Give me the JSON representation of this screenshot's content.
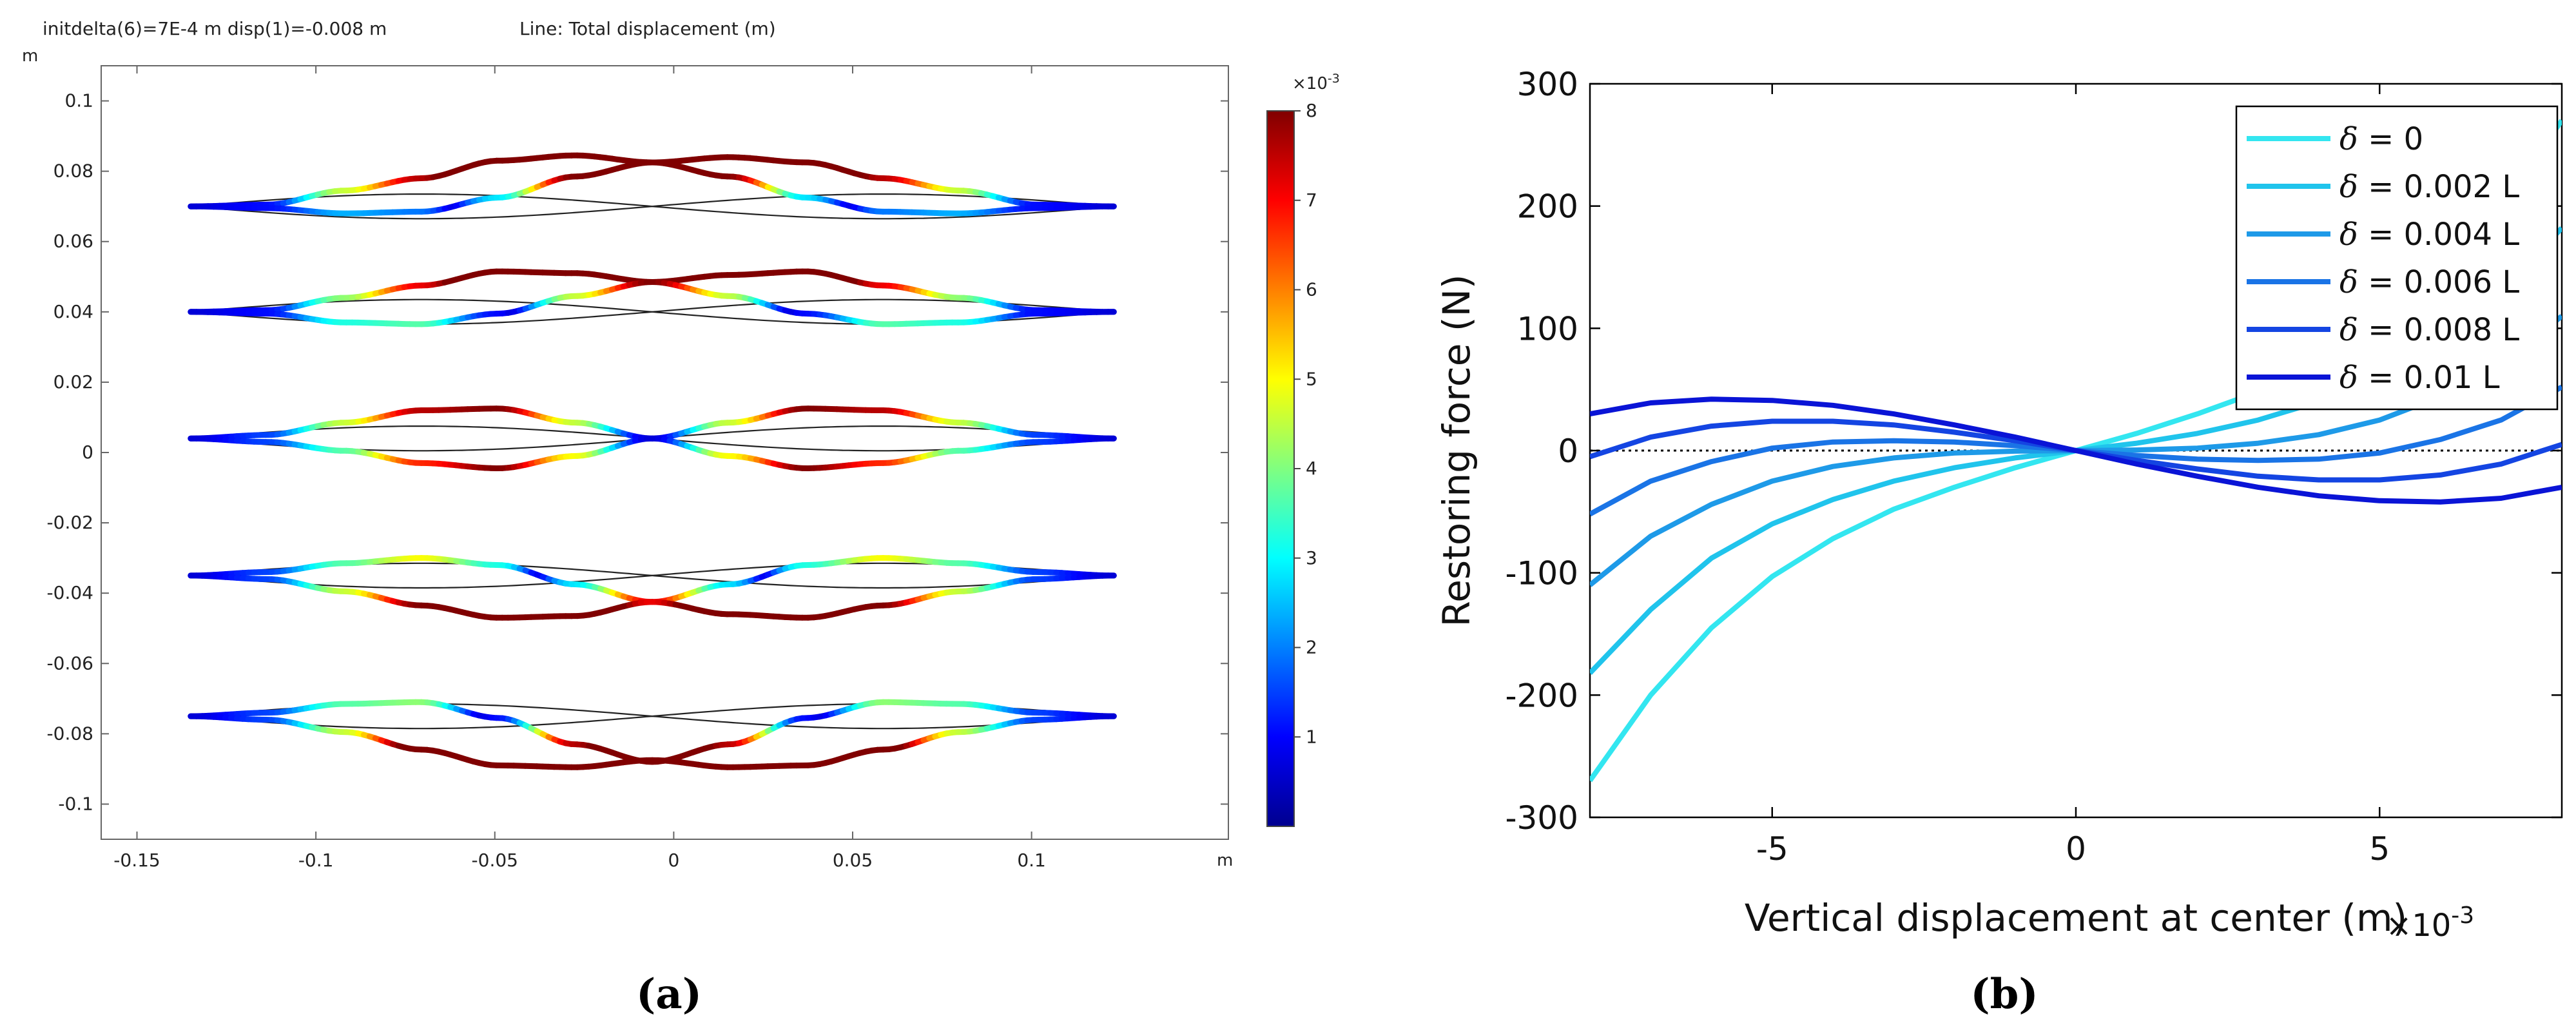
{
  "chart_data": [
    {
      "type": "line",
      "panel_label": "(a)",
      "header_left": "initdelta(6)=7E-4 m disp(1)=-0.008 m",
      "header_right": "Line: Total displacement (m)",
      "x_unit": "m",
      "y_unit": "m",
      "xlim": [
        -0.16,
        0.155
      ],
      "ylim": [
        -0.11,
        0.11
      ],
      "x_ticks": [
        -0.15,
        -0.1,
        -0.05,
        0,
        0.05,
        0.1
      ],
      "x_tick_labels": [
        "-0.15",
        "-0.1",
        "-0.05",
        "0",
        "0.05",
        "0.1"
      ],
      "y_ticks": [
        0.1,
        0.08,
        0.06,
        0.04,
        0.02,
        0,
        -0.02,
        -0.04,
        -0.06,
        -0.08,
        -0.1
      ],
      "y_tick_labels": [
        "0.1",
        "0.08",
        "0.06",
        "0.04",
        "0.02",
        "0",
        "-0.02",
        "-0.04",
        "-0.06",
        "-0.08",
        "-0.1"
      ],
      "colorbar": {
        "label": "Total displacement (m)",
        "exponent_label": "×10",
        "exponent_power": "-3",
        "range": [
          0,
          8
        ],
        "ticks": [
          1,
          2,
          3,
          4,
          5,
          6,
          7,
          8
        ],
        "tick_labels": [
          "1",
          "2",
          "3",
          "4",
          "5",
          "6",
          "7",
          "8"
        ],
        "colormap": [
          "#00008f",
          "#0000ff",
          "#0080ff",
          "#00ffff",
          "#80ff80",
          "#ffff00",
          "#ff8000",
          "#ff0000",
          "#800000"
        ]
      },
      "beam_x_range": [
        -0.135,
        0.123
      ],
      "beams": [
        {
          "center_y": 0.07,
          "undeformed_amplitude": 0.0035,
          "deformed_upper": [
            0.07,
            0.0705,
            0.0745,
            0.078,
            0.083,
            0.0845,
            0.0825,
            0.084,
            0.0825,
            0.078,
            0.0745,
            0.0705,
            0.07
          ],
          "deformed_lower": [
            0.07,
            0.0695,
            0.068,
            0.0685,
            0.0725,
            0.0785,
            0.0825,
            0.0785,
            0.0725,
            0.0685,
            0.068,
            0.0695,
            0.07
          ]
        },
        {
          "center_y": 0.04,
          "undeformed_amplitude": 0.0035,
          "deformed_upper": [
            0.04,
            0.0405,
            0.044,
            0.0475,
            0.0515,
            0.051,
            0.0485,
            0.0505,
            0.0515,
            0.0475,
            0.044,
            0.0405,
            0.04
          ],
          "deformed_lower": [
            0.04,
            0.0395,
            0.037,
            0.0365,
            0.0395,
            0.0445,
            0.0485,
            0.0445,
            0.0395,
            0.0365,
            0.037,
            0.0395,
            0.04
          ]
        },
        {
          "center_y": 0.004,
          "undeformed_amplitude": 0.0035,
          "deformed_upper": [
            0.004,
            0.005,
            0.0085,
            0.012,
            0.0125,
            0.0085,
            0.004,
            0.0085,
            0.0125,
            0.012,
            0.0085,
            0.005,
            0.004
          ],
          "deformed_lower": [
            0.004,
            0.003,
            0.0005,
            -0.003,
            -0.0045,
            -0.001,
            0.004,
            -0.001,
            -0.0045,
            -0.003,
            0.0005,
            0.003,
            0.004
          ]
        },
        {
          "center_y": -0.035,
          "undeformed_amplitude": 0.0035,
          "deformed_upper": [
            -0.035,
            -0.034,
            -0.0315,
            -0.03,
            -0.032,
            -0.0375,
            -0.0425,
            -0.0375,
            -0.032,
            -0.03,
            -0.0315,
            -0.034,
            -0.035
          ],
          "deformed_lower": [
            -0.035,
            -0.036,
            -0.0395,
            -0.0435,
            -0.047,
            -0.0465,
            -0.0425,
            -0.046,
            -0.047,
            -0.0435,
            -0.0395,
            -0.036,
            -0.035
          ]
        },
        {
          "center_y": -0.075,
          "undeformed_amplitude": 0.0035,
          "deformed_upper": [
            -0.075,
            -0.074,
            -0.0715,
            -0.071,
            -0.0755,
            -0.083,
            -0.088,
            -0.083,
            -0.0755,
            -0.071,
            -0.0715,
            -0.074,
            -0.075
          ],
          "deformed_lower": [
            -0.075,
            -0.076,
            -0.0795,
            -0.0845,
            -0.089,
            -0.0895,
            -0.0875,
            -0.0895,
            -0.089,
            -0.0845,
            -0.0795,
            -0.076,
            -0.075
          ]
        }
      ],
      "color_scale_max_displacement": 0.0085
    },
    {
      "type": "line",
      "panel_label": "(b)",
      "xlabel": "Vertical displacement at center (m)",
      "ylabel": "Restoring force (N)",
      "x_multiplier_base": "×10",
      "x_multiplier_power": "-3",
      "xlim": [
        -8,
        8
      ],
      "ylim": [
        -300,
        300
      ],
      "x_ticks": [
        -5,
        0,
        5
      ],
      "x_tick_labels": [
        "-5",
        "0",
        "5"
      ],
      "y_ticks": [
        300,
        200,
        100,
        0,
        -100,
        -200,
        -300
      ],
      "y_tick_labels": [
        "300",
        "200",
        "100",
        "0",
        "-100",
        "-200",
        "-300"
      ],
      "legend_position": "top-right",
      "reference_line_y": 0,
      "x": [
        -8,
        -7,
        -6,
        -5,
        -4,
        -3,
        -2,
        -1,
        0,
        1,
        2,
        3,
        4,
        5,
        6,
        7,
        8
      ],
      "series": [
        {
          "name": "δ = 0",
          "legend_symbol": "δ",
          "legend_text": " = 0",
          "color": "#33e6f0",
          "values": [
            -270,
            -200,
            -145,
            -103,
            -72,
            -48,
            -30,
            -14,
            0,
            14,
            30,
            48,
            72,
            103,
            145,
            200,
            270
          ]
        },
        {
          "name": "δ = 0.002 L",
          "legend_symbol": "δ",
          "legend_text": " = 0.002 L",
          "color": "#20c4ec",
          "values": [
            -182,
            -130,
            -88,
            -60,
            -40,
            -25,
            -14,
            -6,
            0,
            6,
            14,
            25,
            40,
            60,
            88,
            130,
            182
          ]
        },
        {
          "name": "δ = 0.004 L",
          "legend_symbol": "δ",
          "legend_text": " = 0.004 L",
          "color": "#1e9ae8",
          "values": [
            -110,
            -70,
            -44,
            -25,
            -13,
            -6,
            -2,
            -0.5,
            0,
            0.5,
            2,
            6,
            13,
            25,
            44,
            70,
            110
          ]
        },
        {
          "name": "δ = 0.006 L",
          "legend_symbol": "δ",
          "legend_text": " = 0.006 L",
          "color": "#1a74e6",
          "values": [
            -52,
            -25,
            -9,
            2,
            7,
            8,
            7,
            4,
            0,
            -4,
            -7,
            -8,
            -7,
            -2,
            9,
            25,
            52
          ]
        },
        {
          "name": "δ = 0.008 L",
          "legend_symbol": "δ",
          "legend_text": " = 0.008 L",
          "color": "#1445e2",
          "values": [
            -5,
            11,
            20,
            24,
            24,
            21,
            15,
            8,
            0,
            -8,
            -15,
            -21,
            -24,
            -24,
            -20,
            -11,
            5
          ]
        },
        {
          "name": "δ = 0.01 L",
          "legend_symbol": "δ",
          "legend_text": " = 0.01 L",
          "color": "#0a14d6",
          "values": [
            30,
            39,
            42,
            41,
            37,
            30,
            21,
            11,
            0,
            -11,
            -21,
            -30,
            -37,
            -41,
            -42,
            -39,
            -30
          ]
        }
      ]
    }
  ]
}
